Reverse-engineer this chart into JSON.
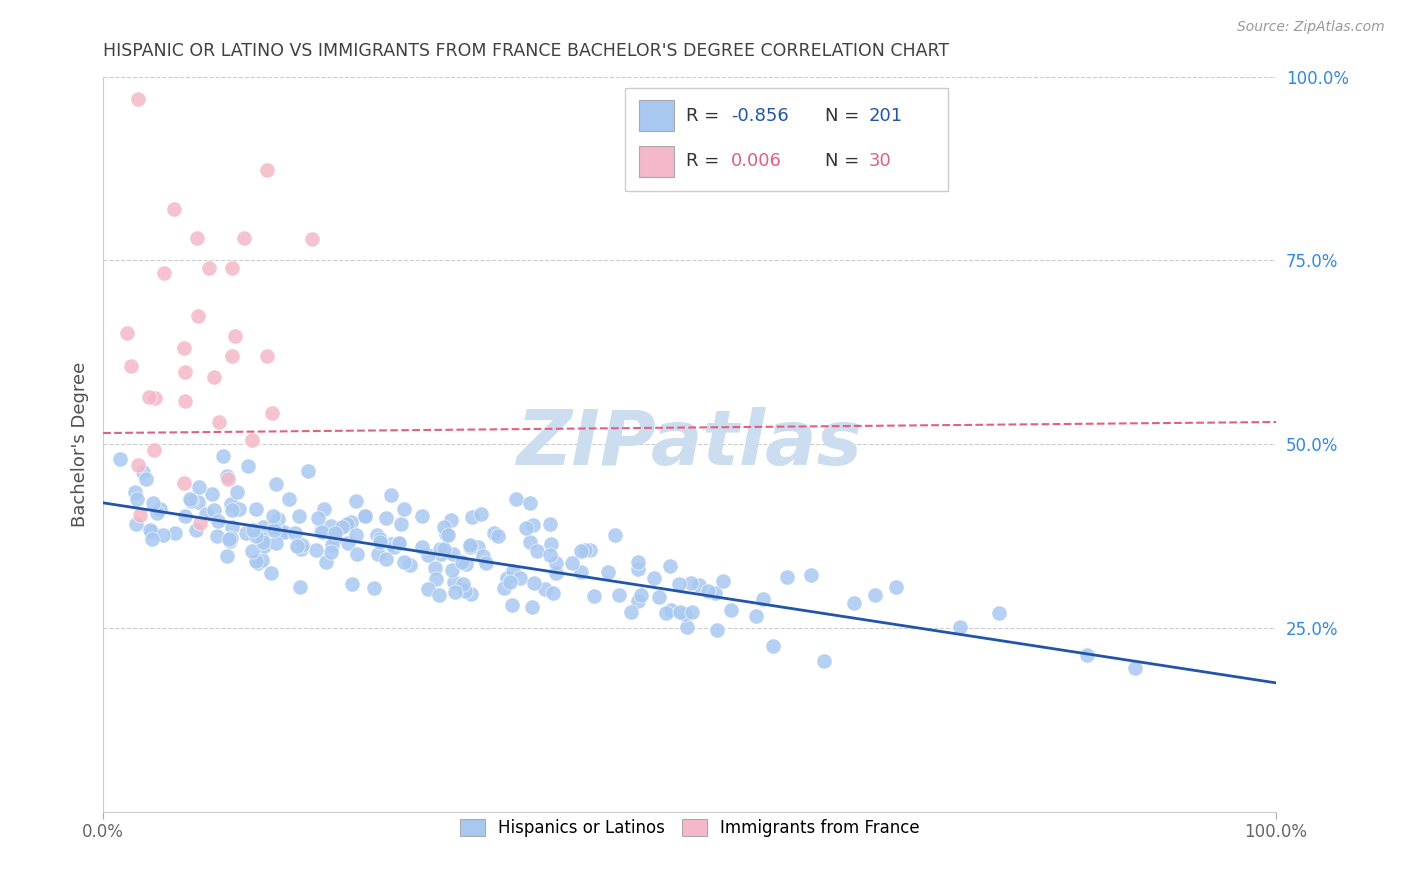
{
  "title": "HISPANIC OR LATINO VS IMMIGRANTS FROM FRANCE BACHELOR'S DEGREE CORRELATION CHART",
  "source": "Source: ZipAtlas.com",
  "ylabel": "Bachelor's Degree",
  "xlim": [
    0,
    1
  ],
  "ylim": [
    0,
    1
  ],
  "ytick_vals_right": [
    1.0,
    0.75,
    0.5,
    0.25
  ],
  "ytick_labels_right": [
    "100.0%",
    "75.0%",
    "50.0%",
    "25.0%"
  ],
  "blue_R": "-0.856",
  "blue_N": "201",
  "pink_R": "0.006",
  "pink_N": "30",
  "blue_color": "#a8c8f0",
  "pink_color": "#f4b8c8",
  "blue_line_color": "#2255aa",
  "pink_line_color": "#e06080",
  "legend_blue_label": "Hispanics or Latinos",
  "legend_pink_label": "Immigrants from France",
  "watermark": "ZIPatlas",
  "blue_line_x0": 0.0,
  "blue_line_x1": 1.0,
  "blue_line_y0": 0.42,
  "blue_line_y1": 0.175,
  "pink_line_x0": 0.0,
  "pink_line_x1": 1.0,
  "pink_line_y0": 0.515,
  "pink_line_y1": 0.53,
  "grid_color": "#cccccc",
  "title_color": "#404040",
  "watermark_color": "#ccddf0",
  "right_label_color": "#3388dd"
}
